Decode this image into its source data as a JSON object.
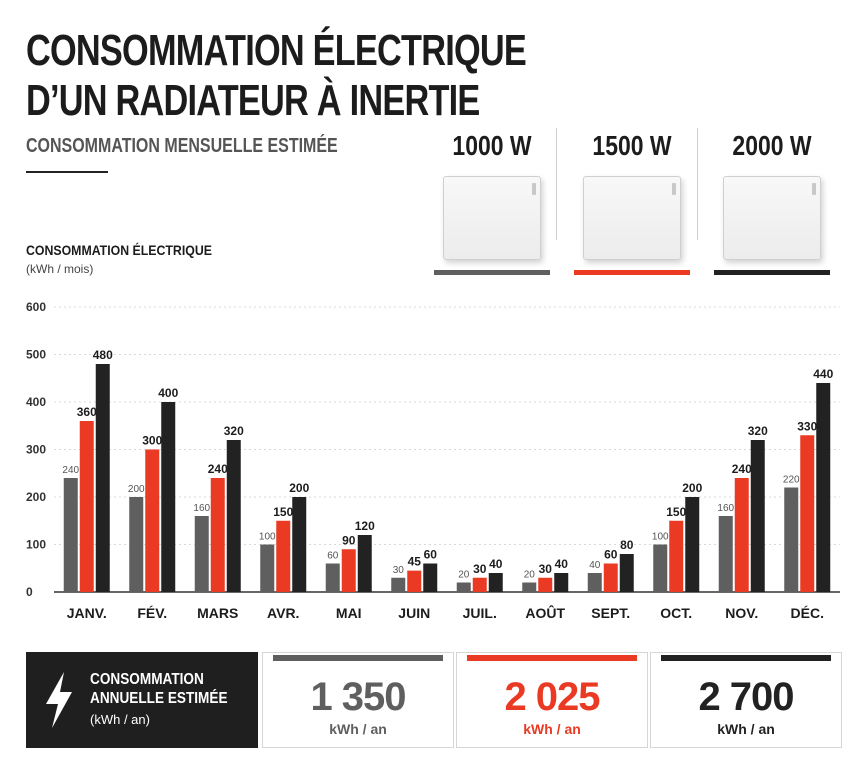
{
  "header": {
    "title_line1": "CONSOMMATION ÉLECTRIQUE",
    "title_line2": "D’UN RADIATEUR À INERTIE",
    "subtitle": "CONSOMMATION MENSUELLE ESTIMÉE"
  },
  "variants": [
    {
      "label": "1000 W",
      "color": "#5f5f5f"
    },
    {
      "label": "1500 W",
      "color": "#ea3a23"
    },
    {
      "label": "2000 W",
      "color": "#222222"
    }
  ],
  "yaxis": {
    "title": "CONSOMMATION ÉLECTRIQUE",
    "unit": "(kWh / mois)"
  },
  "chart_data": {
    "type": "bar",
    "title": "CONSOMMATION MENSUELLE ESTIMÉE",
    "ylabel": "CONSOMMATION ÉLECTRIQUE (kWh / mois)",
    "xlabel": "",
    "ylim": [
      0,
      600
    ],
    "yticks": [
      0,
      100,
      200,
      300,
      400,
      500,
      600
    ],
    "grid": true,
    "categories": [
      "JANV.",
      "FÉV.",
      "MARS",
      "AVR.",
      "MAI",
      "JUIN",
      "JUIL.",
      "AOÛT",
      "SEPT.",
      "OCT.",
      "NOV.",
      "DÉC."
    ],
    "series": [
      {
        "name": "1000 W",
        "color": "#5f5f5f",
        "values": [
          240,
          200,
          160,
          100,
          60,
          30,
          20,
          20,
          40,
          100,
          160,
          220
        ]
      },
      {
        "name": "1500 W",
        "color": "#ea3a23",
        "values": [
          360,
          300,
          240,
          150,
          90,
          45,
          30,
          30,
          60,
          150,
          240,
          330
        ]
      },
      {
        "name": "2000 W",
        "color": "#222222",
        "values": [
          480,
          400,
          320,
          200,
          120,
          60,
          40,
          40,
          80,
          200,
          320,
          440
        ]
      }
    ]
  },
  "footer": {
    "label_line1": "CONSOMMATION",
    "label_line2": "ANNUELLE ESTIMÉE",
    "unit": "(kWh / an)",
    "icon": "lightning-bolt-icon",
    "totals": [
      {
        "value": "1 350",
        "unit": "kWh / an",
        "color": "#5f5f5f"
      },
      {
        "value": "2 025",
        "unit": "kWh / an",
        "color": "#ea3a23"
      },
      {
        "value": "2 700",
        "unit": "kWh / an",
        "color": "#222222"
      }
    ]
  }
}
